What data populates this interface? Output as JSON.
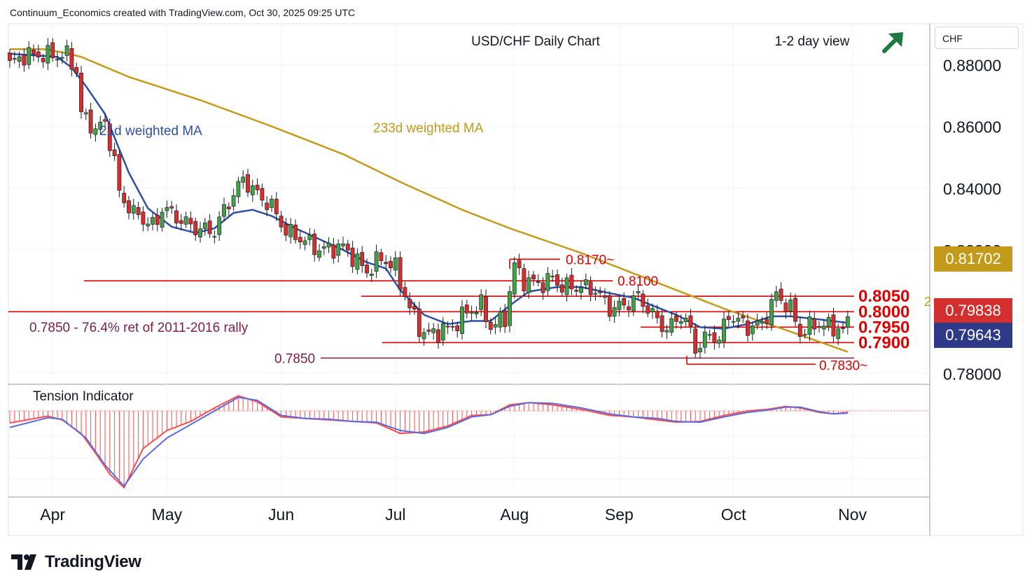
{
  "header": {
    "text": "Continuum_Economics created with TradingView.com, Oct 30, 2025 09:25 UTC"
  },
  "brand": {
    "name": "TradingView",
    "logo": "tradingview-logo-icon"
  },
  "currency_selector": {
    "value": "CHF"
  },
  "colors": {
    "up": "#43a047",
    "down": "#d32f2f",
    "wick": "#131722",
    "ma21": "#2e4fa3",
    "ma233": "#c49a1a",
    "level": "#e00000",
    "ret": "#7a1f4a",
    "arrow": "#1e7a3e",
    "tension_fast": "#ff4d4d",
    "tension_slow": "#5a6be0"
  },
  "chart_data": {
    "type": "candlestick",
    "symbol": "USD/CHF",
    "title": "USD/CHF Daily Chart",
    "view": "1-2 day view",
    "view_icon": "up-right-arrow-icon",
    "y_axis": {
      "ticks": [
        "0.88000",
        "0.86000",
        "0.84000",
        "0.82000",
        "0.80000",
        "0.78000"
      ],
      "range": [
        0.7765,
        0.8932
      ],
      "position": "right"
    },
    "x_axis": {
      "ticks": [
        "Apr",
        "May",
        "Jun",
        "Jul",
        "Aug",
        "Sep",
        "Oct",
        "Nov"
      ]
    },
    "grid": true,
    "price_tags": [
      {
        "label": "0.81702",
        "value": 0.81702,
        "color": "#c49a1a"
      },
      {
        "label": "0.79838",
        "value": 0.79838,
        "color": "#d32f2f"
      },
      {
        "label": "0.79643",
        "value": 0.79643,
        "color": "#2e3a87"
      }
    ],
    "ma_labels": [
      {
        "text": "21d weighted MA",
        "color": "#2e4fa3"
      },
      {
        "text": "233d weighted MA",
        "color": "#c49a1a"
      }
    ],
    "levels": [
      {
        "label": "0.8170~",
        "value": 0.817
      },
      {
        "label": "0.8100",
        "value": 0.81
      },
      {
        "label": "0.8050",
        "value": 0.805
      },
      {
        "label": "0.8000",
        "value": 0.8
      },
      {
        "label": "0.7950",
        "value": 0.795
      },
      {
        "label": "0.7900",
        "value": 0.79
      },
      {
        "label": "0.7850",
        "value": 0.785
      },
      {
        "label": "0.7830~",
        "value": 0.783
      }
    ],
    "annotation": "0.7850 - 76.4% ret of 2011-2016 rally",
    "partial_label": "2",
    "keypoints": [
      [
        0,
        0.88
      ],
      [
        3,
        0.883
      ],
      [
        12,
        0.883
      ],
      [
        14,
        0.878
      ],
      [
        15,
        0.864
      ],
      [
        18,
        0.859
      ],
      [
        20,
        0.861
      ],
      [
        22,
        0.849
      ],
      [
        23,
        0.838
      ],
      [
        26,
        0.832
      ],
      [
        30,
        0.828
      ],
      [
        31,
        0.829
      ],
      [
        32,
        0.834
      ],
      [
        35,
        0.8305
      ],
      [
        39,
        0.827
      ],
      [
        43,
        0.826
      ],
      [
        45,
        0.833
      ],
      [
        49,
        0.843
      ],
      [
        52,
        0.838
      ],
      [
        55,
        0.834
      ],
      [
        58,
        0.826
      ],
      [
        62,
        0.823
      ],
      [
        65,
        0.82
      ],
      [
        70,
        0.821
      ],
      [
        75,
        0.813
      ],
      [
        78,
        0.8175
      ],
      [
        81,
        0.814
      ],
      [
        84,
        0.801
      ],
      [
        87,
        0.7925
      ],
      [
        90,
        0.7935
      ],
      [
        93,
        0.795
      ],
      [
        96,
        0.8
      ],
      [
        99,
        0.802
      ],
      [
        101,
        0.795
      ],
      [
        104,
        0.798
      ],
      [
        106,
        0.815
      ],
      [
        108,
        0.81
      ],
      [
        112,
        0.809
      ],
      [
        114,
        0.811
      ],
      [
        116,
        0.808
      ],
      [
        120,
        0.808
      ],
      [
        123,
        0.807
      ],
      [
        126,
        0.801
      ],
      [
        129,
        0.802
      ],
      [
        132,
        0.805
      ],
      [
        135,
        0.799
      ],
      [
        138,
        0.794
      ],
      [
        141,
        0.799
      ],
      [
        143,
        0.794
      ],
      [
        144,
        0.788
      ],
      [
        147,
        0.7925
      ],
      [
        149,
        0.791
      ],
      [
        151,
        0.799
      ],
      [
        155,
        0.795
      ],
      [
        158,
        0.796
      ],
      [
        161,
        0.8055
      ],
      [
        164,
        0.801
      ],
      [
        166,
        0.793
      ],
      [
        169,
        0.796
      ],
      [
        173,
        0.795
      ],
      [
        175,
        0.7938
      ],
      [
        176,
        0.7984
      ]
    ],
    "ma21_keypoints": [
      [
        0,
        0.8835
      ],
      [
        5,
        0.883
      ],
      [
        10,
        0.8825
      ],
      [
        13,
        0.879
      ],
      [
        16,
        0.873
      ],
      [
        20,
        0.864
      ],
      [
        25,
        0.845
      ],
      [
        29,
        0.8335
      ],
      [
        34,
        0.8275
      ],
      [
        39,
        0.8255
      ],
      [
        43,
        0.827
      ],
      [
        47,
        0.832
      ],
      [
        51,
        0.833
      ],
      [
        55,
        0.831
      ],
      [
        60,
        0.827
      ],
      [
        65,
        0.8235
      ],
      [
        70,
        0.82
      ],
      [
        75,
        0.816
      ],
      [
        79,
        0.814
      ],
      [
        82,
        0.807
      ],
      [
        87,
        0.799
      ],
      [
        92,
        0.796
      ],
      [
        97,
        0.797
      ],
      [
        101,
        0.797
      ],
      [
        105,
        0.802
      ],
      [
        109,
        0.8065
      ],
      [
        115,
        0.808
      ],
      [
        120,
        0.808
      ],
      [
        126,
        0.806
      ],
      [
        131,
        0.8045
      ],
      [
        135,
        0.802
      ],
      [
        140,
        0.799
      ],
      [
        145,
        0.795
      ],
      [
        150,
        0.7945
      ],
      [
        155,
        0.796
      ],
      [
        160,
        0.7985
      ],
      [
        164,
        0.7985
      ],
      [
        170,
        0.7975
      ],
      [
        176,
        0.7964
      ]
    ],
    "ma233_keypoints": [
      [
        0,
        0.885
      ],
      [
        7,
        0.885
      ],
      [
        11,
        0.884
      ],
      [
        15,
        0.8825
      ],
      [
        25,
        0.876
      ],
      [
        40,
        0.8685
      ],
      [
        55,
        0.86
      ],
      [
        70,
        0.851
      ],
      [
        82,
        0.842
      ],
      [
        95,
        0.833
      ],
      [
        105,
        0.827
      ],
      [
        120,
        0.819
      ],
      [
        135,
        0.81
      ],
      [
        150,
        0.801
      ],
      [
        165,
        0.793
      ],
      [
        176,
        0.787
      ]
    ],
    "tension_indicator": {
      "label": "Tension Indicator",
      "fast_keypoints": [
        [
          0,
          -0.8
        ],
        [
          8,
          -0.35
        ],
        [
          11,
          -0.6
        ],
        [
          15,
          -1.5
        ],
        [
          18,
          -2.8
        ],
        [
          21,
          -4.2
        ],
        [
          24,
          -5.1
        ],
        [
          28,
          -2.5
        ],
        [
          33,
          -1.3
        ],
        [
          38,
          -0.7
        ],
        [
          43,
          0.2
        ],
        [
          48,
          1.0
        ],
        [
          52,
          0.6
        ],
        [
          57,
          -0.4
        ],
        [
          62,
          -0.5
        ],
        [
          67,
          -0.6
        ],
        [
          72,
          -0.7
        ],
        [
          77,
          -0.8
        ],
        [
          82,
          -1.5
        ],
        [
          87,
          -1.4
        ],
        [
          92,
          -1.0
        ],
        [
          97,
          -0.3
        ],
        [
          101,
          -0.25
        ],
        [
          105,
          0.4
        ],
        [
          109,
          0.55
        ],
        [
          114,
          0.4
        ],
        [
          120,
          0.1
        ],
        [
          126,
          -0.3
        ],
        [
          131,
          -0.4
        ],
        [
          136,
          -0.6
        ],
        [
          140,
          -0.75
        ],
        [
          145,
          -0.7
        ],
        [
          150,
          -0.3
        ],
        [
          155,
          0.0
        ],
        [
          159,
          0.1
        ],
        [
          163,
          0.3
        ],
        [
          166,
          0.2
        ],
        [
          170,
          -0.1
        ],
        [
          173,
          -0.2
        ],
        [
          176,
          -0.1
        ]
      ],
      "slow_keypoints": [
        [
          0,
          -1.1
        ],
        [
          8,
          -0.45
        ],
        [
          11,
          -0.55
        ],
        [
          16,
          -1.8
        ],
        [
          20,
          -3.6
        ],
        [
          24,
          -5.0
        ],
        [
          28,
          -3.2
        ],
        [
          33,
          -1.8
        ],
        [
          38,
          -0.9
        ],
        [
          43,
          0.0
        ],
        [
          48,
          0.9
        ],
        [
          52,
          0.7
        ],
        [
          57,
          -0.3
        ],
        [
          62,
          -0.5
        ],
        [
          67,
          -0.55
        ],
        [
          72,
          -0.7
        ],
        [
          77,
          -0.75
        ],
        [
          82,
          -1.3
        ],
        [
          87,
          -1.5
        ],
        [
          92,
          -1.1
        ],
        [
          97,
          -0.4
        ],
        [
          101,
          -0.25
        ],
        [
          105,
          0.3
        ],
        [
          109,
          0.55
        ],
        [
          114,
          0.5
        ],
        [
          120,
          0.2
        ],
        [
          126,
          -0.2
        ],
        [
          131,
          -0.4
        ],
        [
          136,
          -0.5
        ],
        [
          140,
          -0.7
        ],
        [
          145,
          -0.75
        ],
        [
          150,
          -0.4
        ],
        [
          155,
          -0.1
        ],
        [
          159,
          0.05
        ],
        [
          163,
          0.25
        ],
        [
          166,
          0.25
        ],
        [
          170,
          -0.05
        ],
        [
          173,
          -0.2
        ],
        [
          176,
          -0.15
        ]
      ]
    }
  }
}
